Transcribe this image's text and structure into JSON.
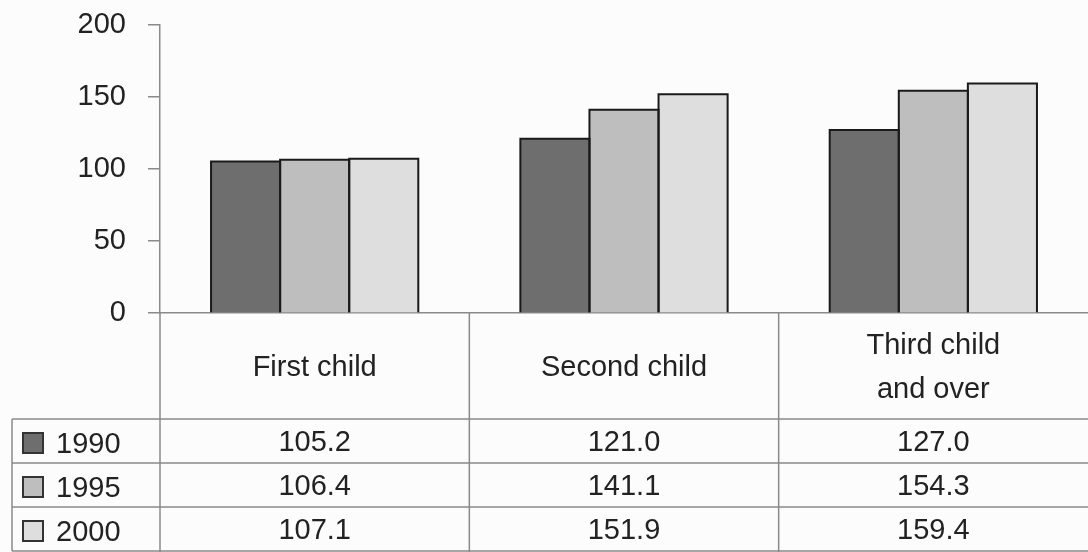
{
  "chart_data": {
    "type": "bar",
    "categories": [
      "First child",
      "Second child",
      "Third child and over"
    ],
    "series": [
      {
        "name": "1990",
        "color": "#6e6e6e",
        "values": [
          105.2,
          121.0,
          127.0
        ],
        "value_labels": [
          "105.2",
          "121.0",
          "127.0"
        ]
      },
      {
        "name": "1995",
        "color": "#bebebe",
        "values": [
          106.4,
          141.1,
          154.3
        ],
        "value_labels": [
          "106.4",
          "141.1",
          "154.3"
        ]
      },
      {
        "name": "2000",
        "color": "#dedede",
        "values": [
          107.1,
          151.9,
          159.4
        ],
        "value_labels": [
          "107.1",
          "151.9",
          "159.4"
        ]
      }
    ],
    "ylim": [
      0,
      200
    ],
    "yticks": [
      0,
      50,
      100,
      150,
      200
    ],
    "legend": "bottom"
  }
}
